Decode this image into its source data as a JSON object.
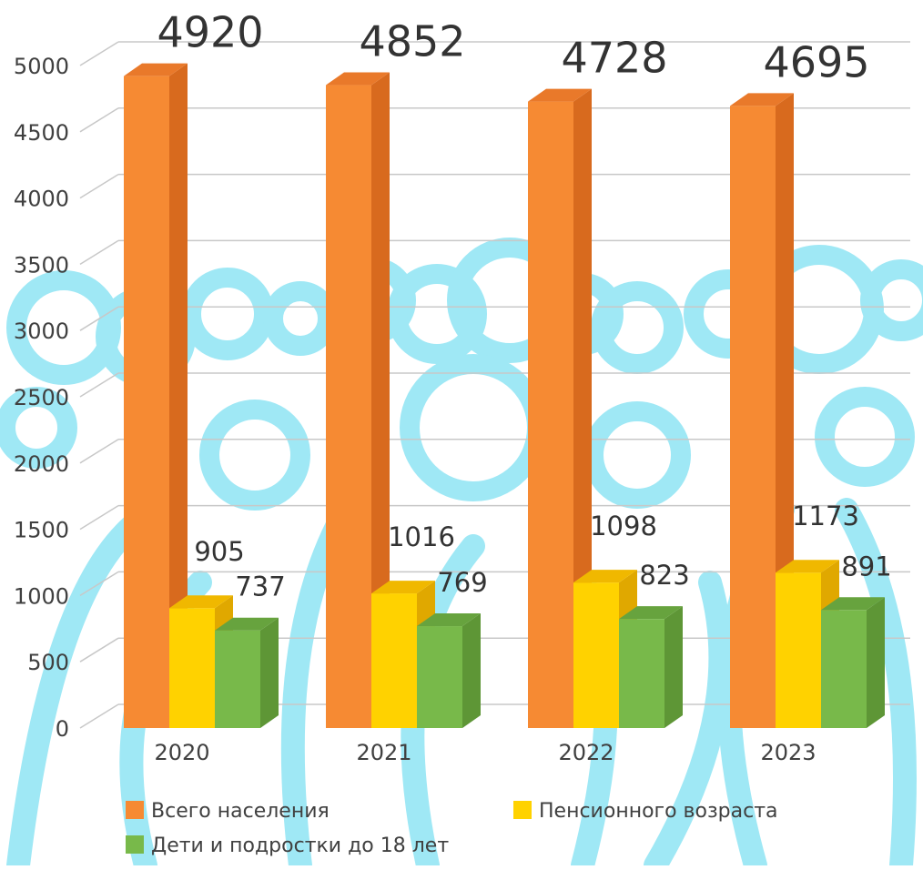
{
  "chart_data": {
    "type": "bar",
    "categories": [
      "2020",
      "2021",
      "2022",
      "2023"
    ],
    "series": [
      {
        "name": "Всего населения",
        "values": [
          4920,
          4852,
          4728,
          4695
        ],
        "color": "#f68a33",
        "side_color": "#d86a1e",
        "top_color": "#e9792a"
      },
      {
        "name": "Пенсионного возраста",
        "values": [
          905,
          1016,
          1098,
          1173
        ],
        "color": "#ffd200",
        "side_color": "#e0a800",
        "top_color": "#f0b800"
      },
      {
        "name": "Дети и подростки до 18 лет",
        "values": [
          737,
          769,
          823,
          891
        ],
        "color": "#78b94a",
        "side_color": "#5e9636",
        "top_color": "#67a33e"
      }
    ],
    "data_labels": [
      [
        "4920",
        "4852",
        "4728",
        "4695"
      ],
      [
        "905",
        "1016",
        "1098",
        "1173"
      ],
      [
        "737",
        "769",
        "823",
        "891"
      ]
    ],
    "yticks": [
      "0",
      "500",
      "1000",
      "1500",
      "2000",
      "2500",
      "3000",
      "3500",
      "4000",
      "4500",
      "5000"
    ],
    "ylim": [
      0,
      5000
    ],
    "grid": true,
    "legend_position": "bottom",
    "background": "light-blue people silhouettes",
    "background_color": "#9fe8f5"
  }
}
